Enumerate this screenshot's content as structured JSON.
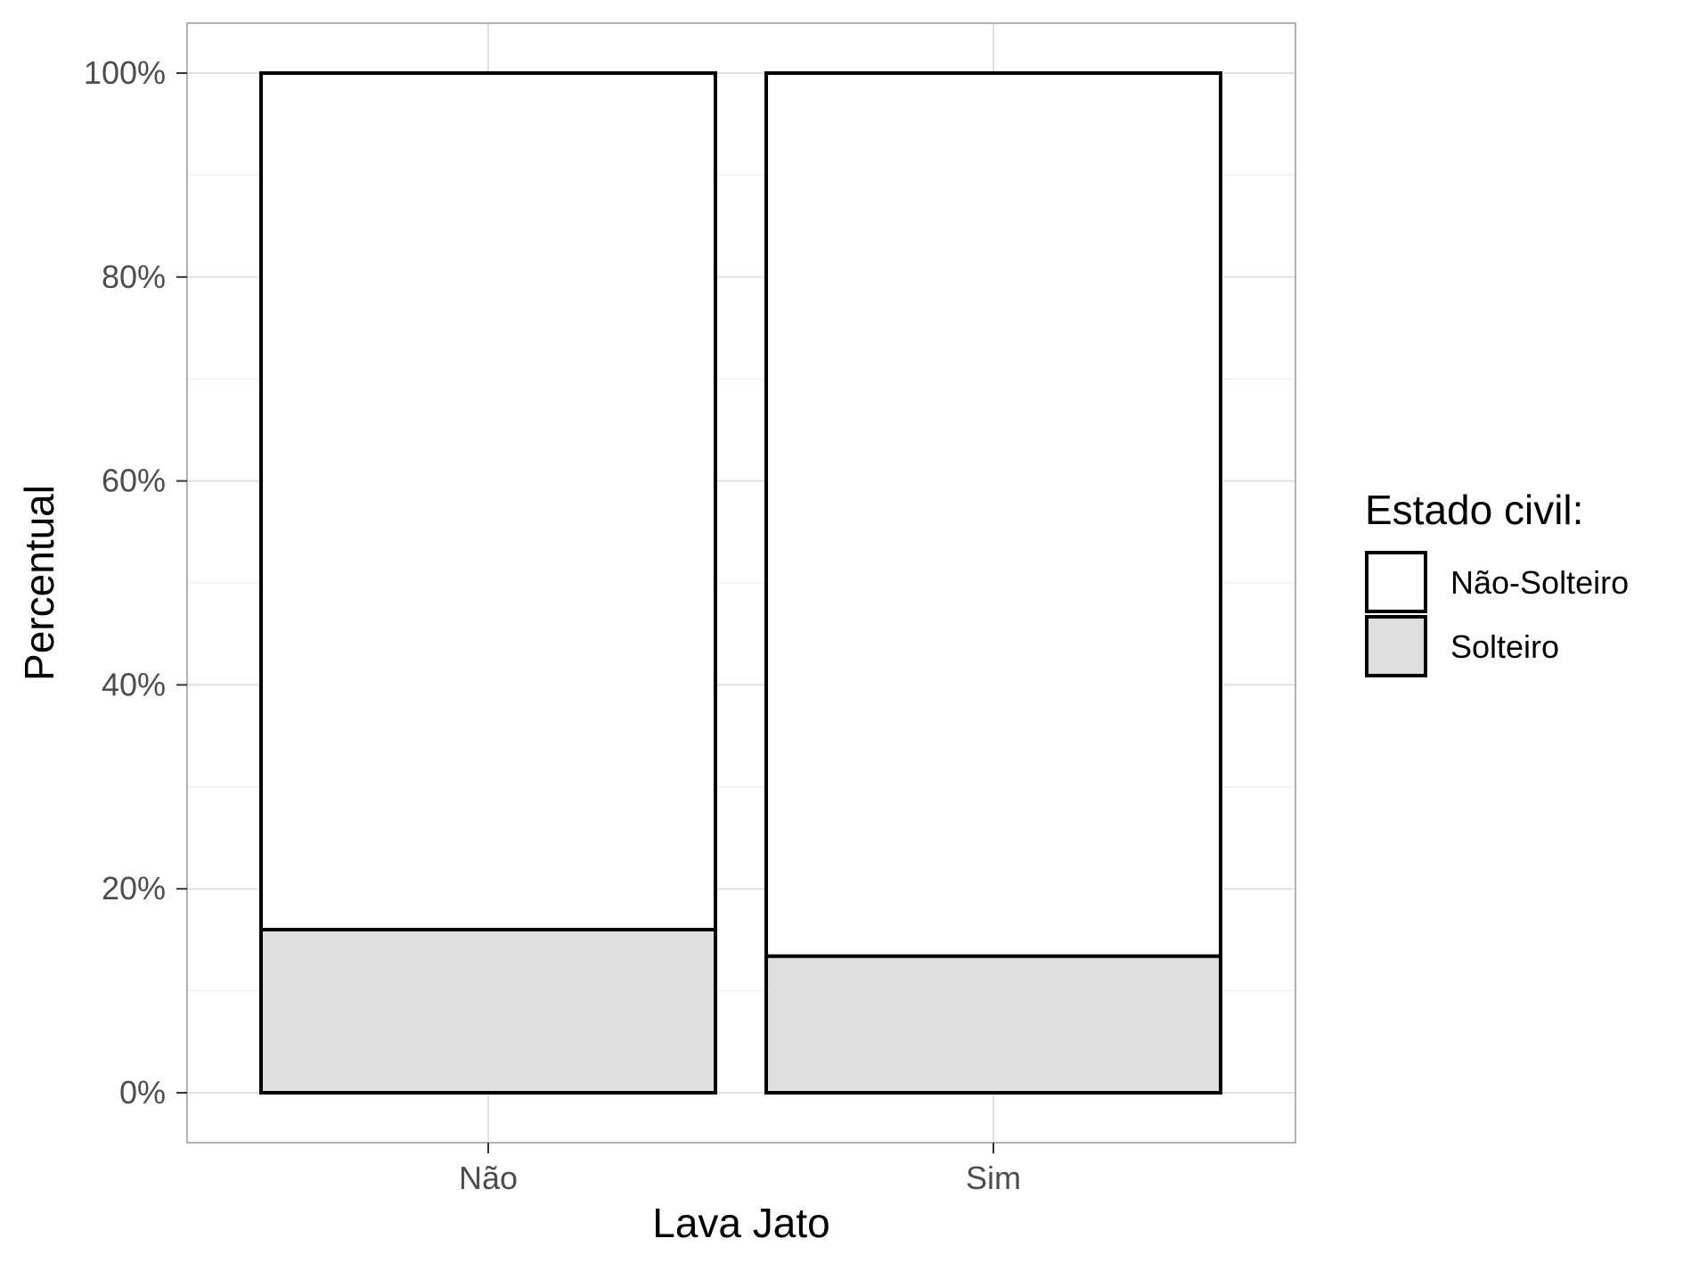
{
  "chart_data": {
    "type": "bar",
    "stacked": true,
    "percent": true,
    "categories": [
      "Não",
      "Sim"
    ],
    "series": [
      {
        "name": "Solteiro",
        "values": [
          16,
          13.4
        ],
        "color": "#dedede"
      },
      {
        "name": "Não-Solteiro",
        "values": [
          84,
          86.6
        ],
        "color": "#ffffff"
      }
    ],
    "ylim": [
      0,
      100
    ],
    "yticks": [
      {
        "value": 0,
        "label": "0%"
      },
      {
        "value": 20,
        "label": "20%"
      },
      {
        "value": 40,
        "label": "40%"
      },
      {
        "value": 60,
        "label": "60%"
      },
      {
        "value": 80,
        "label": "80%"
      },
      {
        "value": 100,
        "label": "100%"
      }
    ],
    "xlabel": "Lava Jato",
    "ylabel": "Percentual",
    "legend": {
      "title": "Estado civil:",
      "position": "right",
      "entries": [
        {
          "label": "Não-Solteiro",
          "color": "#ffffff"
        },
        {
          "label": "Solteiro",
          "color": "#dedede"
        }
      ]
    },
    "grid": true,
    "colors": {
      "outline": "#000000",
      "grid_major": "#e0e0e0",
      "grid_minor": "#efefef",
      "panel_border": "#b3b3b3"
    }
  }
}
